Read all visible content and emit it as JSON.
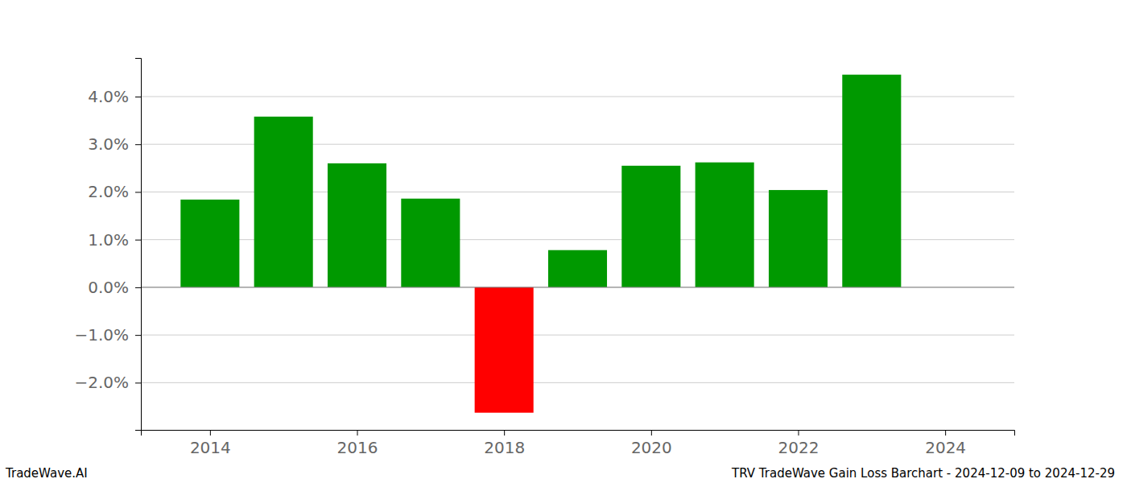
{
  "chart_data": {
    "type": "bar",
    "title": "TRV TradeWave Gain Loss Barchart - 2024-12-09 to 2024-12-29",
    "annotations": [
      "TradeWave.AI"
    ],
    "x": [
      2014,
      2015,
      2016,
      2017,
      2018,
      2019,
      2020,
      2021,
      2022,
      2023
    ],
    "values": [
      1.84,
      3.58,
      2.6,
      1.86,
      -2.63,
      0.78,
      2.55,
      2.62,
      2.04,
      4.46
    ],
    "colors": [
      "#009900",
      "#009900",
      "#009900",
      "#009900",
      "#ff0000",
      "#009900",
      "#009900",
      "#009900",
      "#009900",
      "#009900"
    ],
    "xlim": [
      2013.06,
      2024.94
    ],
    "xticks": [
      2014,
      2016,
      2018,
      2020,
      2022,
      2024
    ],
    "ylim": [
      -2.99,
      4.81
    ],
    "yticks": [
      {
        "value": -2,
        "label": "−2.0%"
      },
      {
        "value": -1,
        "label": "−1.0%"
      },
      {
        "value": 0,
        "label": "0.0%"
      },
      {
        "value": 1,
        "label": "1.0%"
      },
      {
        "value": 2,
        "label": "2.0%"
      },
      {
        "value": 3,
        "label": "3.0%"
      },
      {
        "value": 4,
        "label": "4.0%"
      }
    ],
    "grid": true
  }
}
